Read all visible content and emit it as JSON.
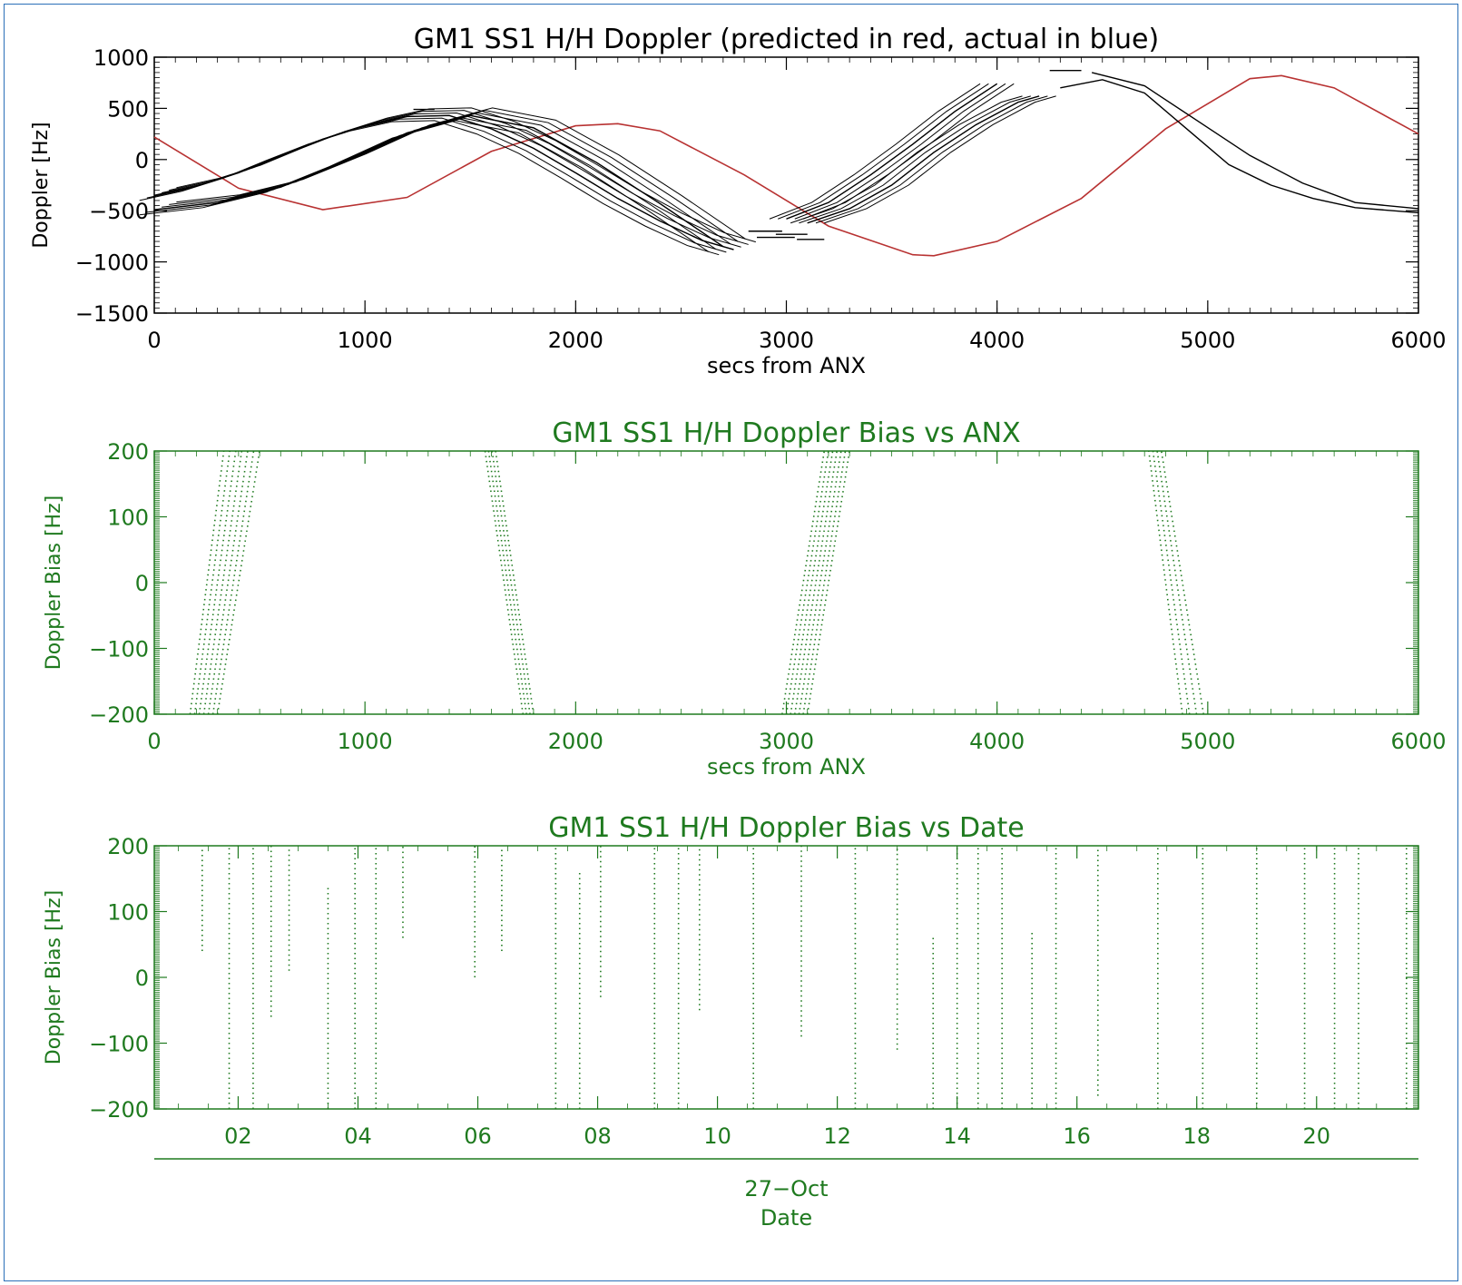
{
  "colors": {
    "frame": "#2a6fb8",
    "panel1": "#000000",
    "predicted": "#b83232",
    "actual": "#000000",
    "green": "#1f7a1f"
  },
  "chart_data": [
    {
      "type": "line",
      "title": "GM1 SS1 H/H Doppler (predicted in red, actual in blue)",
      "xlabel": "secs from ANX",
      "ylabel": "Doppler [Hz]",
      "xlim": [
        0,
        6000
      ],
      "ylim": [
        -1500,
        1000
      ],
      "xticks": [
        "0",
        "1000",
        "2000",
        "3000",
        "4000",
        "5000",
        "6000"
      ],
      "yticks": [
        "1000",
        "500",
        "0",
        "−500",
        "−1000",
        "−1500"
      ],
      "grid": false,
      "series": [
        {
          "color": "#b83232",
          "x": [
            0,
            400,
            800,
            1200,
            1600,
            2000,
            2200,
            2400,
            2800,
            3200,
            3600,
            3700,
            4000,
            4400,
            4800,
            5200,
            5350,
            5600,
            6000
          ],
          "y": [
            220,
            -280,
            -490,
            -370,
            80,
            330,
            350,
            280,
            -150,
            -650,
            -930,
            -940,
            -800,
            -380,
            300,
            790,
            820,
            700,
            250
          ]
        },
        {
          "color": "#000000",
          "x": [
            0,
            200,
            400,
            600,
            800,
            1000,
            1200,
            1400,
            1600,
            1800,
            2000,
            2200,
            2400,
            2600,
            2750
          ],
          "y": [
            -350,
            -260,
            -130,
            40,
            200,
            330,
            420,
            430,
            300,
            110,
            -130,
            -380,
            -600,
            -790,
            -880
          ]
        },
        {
          "color": "#000000",
          "x": [
            0,
            300,
            600,
            900,
            1200,
            1500,
            1800,
            2100,
            2400,
            2700
          ],
          "y": [
            -490,
            -420,
            -270,
            -20,
            260,
            430,
            310,
            -30,
            -430,
            -850
          ]
        },
        {
          "color": "#000000",
          "x": [
            3000,
            3200,
            3400,
            3600,
            3800,
            4000
          ],
          "y": [
            -580,
            -420,
            -150,
            150,
            470,
            740
          ]
        },
        {
          "color": "#000000",
          "x": [
            3100,
            3300,
            3500,
            3700,
            3900,
            4100,
            4200
          ],
          "y": [
            -620,
            -480,
            -250,
            70,
            340,
            560,
            620
          ]
        },
        {
          "color": "#000000",
          "x": [
            4300,
            4500,
            4700,
            4900,
            5100,
            5300,
            5500,
            5700,
            6000
          ],
          "y": [
            700,
            780,
            650,
            300,
            -50,
            -250,
            -380,
            -470,
            -520
          ]
        },
        {
          "color": "#000000",
          "x": [
            4450,
            4700,
            4950,
            5200,
            5450,
            5700,
            6000
          ],
          "y": [
            850,
            720,
            380,
            40,
            -230,
            -420,
            -480
          ]
        }
      ],
      "segments": {
        "color": "#000000",
        "items": [
          {
            "x": [
              2820,
              2980
            ],
            "y": [
              -700,
              -700
            ]
          },
          {
            "x": [
              2860,
              3040
            ],
            "y": [
              -760,
              -760
            ]
          },
          {
            "x": [
              2950,
              3100
            ],
            "y": [
              -730,
              -730
            ]
          },
          {
            "x": [
              3050,
              3180
            ],
            "y": [
              -780,
              -780
            ]
          },
          {
            "x": [
              1230,
              1330
            ],
            "y": [
              490,
              490
            ]
          },
          {
            "x": [
              4250,
              4400
            ],
            "y": [
              870,
              870
            ]
          }
        ]
      }
    },
    {
      "type": "scatter",
      "title": "GM1 SS1 H/H Doppler Bias vs ANX",
      "xlabel": "secs from ANX",
      "ylabel": "Doppler Bias [Hz]",
      "xlim": [
        0,
        6000
      ],
      "ylim": [
        -200,
        200
      ],
      "xticks": [
        "0",
        "1000",
        "2000",
        "3000",
        "4000",
        "5000",
        "6000"
      ],
      "yticks": [
        "200",
        "100",
        "0",
        "−100",
        "−200"
      ],
      "color": "#1f7a1f",
      "bands": [
        {
          "x_low": [
            170,
            300
          ],
          "x_high": [
            330,
            500
          ],
          "lines": 7
        },
        {
          "x_low": [
            1750,
            1800
          ],
          "x_high": [
            1570,
            1620
          ],
          "lines": 4
        },
        {
          "x_low": [
            2980,
            3100
          ],
          "x_high": [
            3180,
            3300
          ],
          "lines": 7
        },
        {
          "x_low": [
            4880,
            4980
          ],
          "x_high": [
            4720,
            4780
          ],
          "lines": 4
        }
      ]
    },
    {
      "type": "scatter",
      "title": "GM1 SS1 H/H Doppler Bias vs Date",
      "xlabel": "Date",
      "date_label": "27−Oct",
      "ylabel": "Doppler Bias [Hz]",
      "xlim": [
        0.6,
        21.7
      ],
      "ylim": [
        -200,
        200
      ],
      "xticks": [
        "02",
        "04",
        "06",
        "08",
        "10",
        "12",
        "14",
        "16",
        "18",
        "20"
      ],
      "yticks": [
        "200",
        "100",
        "0",
        "−100",
        "−200"
      ],
      "color": "#1f7a1f",
      "columns": [
        {
          "x": 1.4,
          "y": [
            40,
            200
          ]
        },
        {
          "x": 1.85,
          "y": [
            -200,
            200
          ]
        },
        {
          "x": 2.25,
          "y": [
            -200,
            200
          ]
        },
        {
          "x": 2.55,
          "y": [
            -60,
            200
          ]
        },
        {
          "x": 2.85,
          "y": [
            10,
            200
          ]
        },
        {
          "x": 3.5,
          "y": [
            -200,
            140
          ]
        },
        {
          "x": 3.95,
          "y": [
            -200,
            200
          ]
        },
        {
          "x": 4.3,
          "y": [
            -200,
            200
          ]
        },
        {
          "x": 4.75,
          "y": [
            60,
            200
          ]
        },
        {
          "x": 5.95,
          "y": [
            0,
            200
          ]
        },
        {
          "x": 6.4,
          "y": [
            40,
            200
          ]
        },
        {
          "x": 7.3,
          "y": [
            -200,
            200
          ]
        },
        {
          "x": 7.7,
          "y": [
            -200,
            160
          ]
        },
        {
          "x": 8.05,
          "y": [
            -30,
            200
          ]
        },
        {
          "x": 8.95,
          "y": [
            -200,
            200
          ]
        },
        {
          "x": 9.35,
          "y": [
            -200,
            200
          ]
        },
        {
          "x": 9.7,
          "y": [
            -50,
            200
          ]
        },
        {
          "x": 10.6,
          "y": [
            -200,
            200
          ]
        },
        {
          "x": 11.4,
          "y": [
            -90,
            200
          ]
        },
        {
          "x": 12.3,
          "y": [
            -200,
            200
          ]
        },
        {
          "x": 13.0,
          "y": [
            -110,
            200
          ]
        },
        {
          "x": 13.6,
          "y": [
            -200,
            60
          ]
        },
        {
          "x": 14.0,
          "y": [
            -200,
            200
          ]
        },
        {
          "x": 14.35,
          "y": [
            -200,
            200
          ]
        },
        {
          "x": 14.75,
          "y": [
            -200,
            200
          ]
        },
        {
          "x": 15.25,
          "y": [
            -200,
            70
          ]
        },
        {
          "x": 15.65,
          "y": [
            -200,
            200
          ]
        },
        {
          "x": 16.35,
          "y": [
            -180,
            200
          ]
        },
        {
          "x": 17.35,
          "y": [
            -200,
            200
          ]
        },
        {
          "x": 18.1,
          "y": [
            -200,
            200
          ]
        },
        {
          "x": 19.0,
          "y": [
            -200,
            200
          ]
        },
        {
          "x": 19.8,
          "y": [
            -200,
            200
          ]
        },
        {
          "x": 20.3,
          "y": [
            -200,
            200
          ]
        },
        {
          "x": 20.7,
          "y": [
            -200,
            200
          ]
        },
        {
          "x": 21.5,
          "y": [
            -200,
            200
          ]
        }
      ]
    }
  ]
}
